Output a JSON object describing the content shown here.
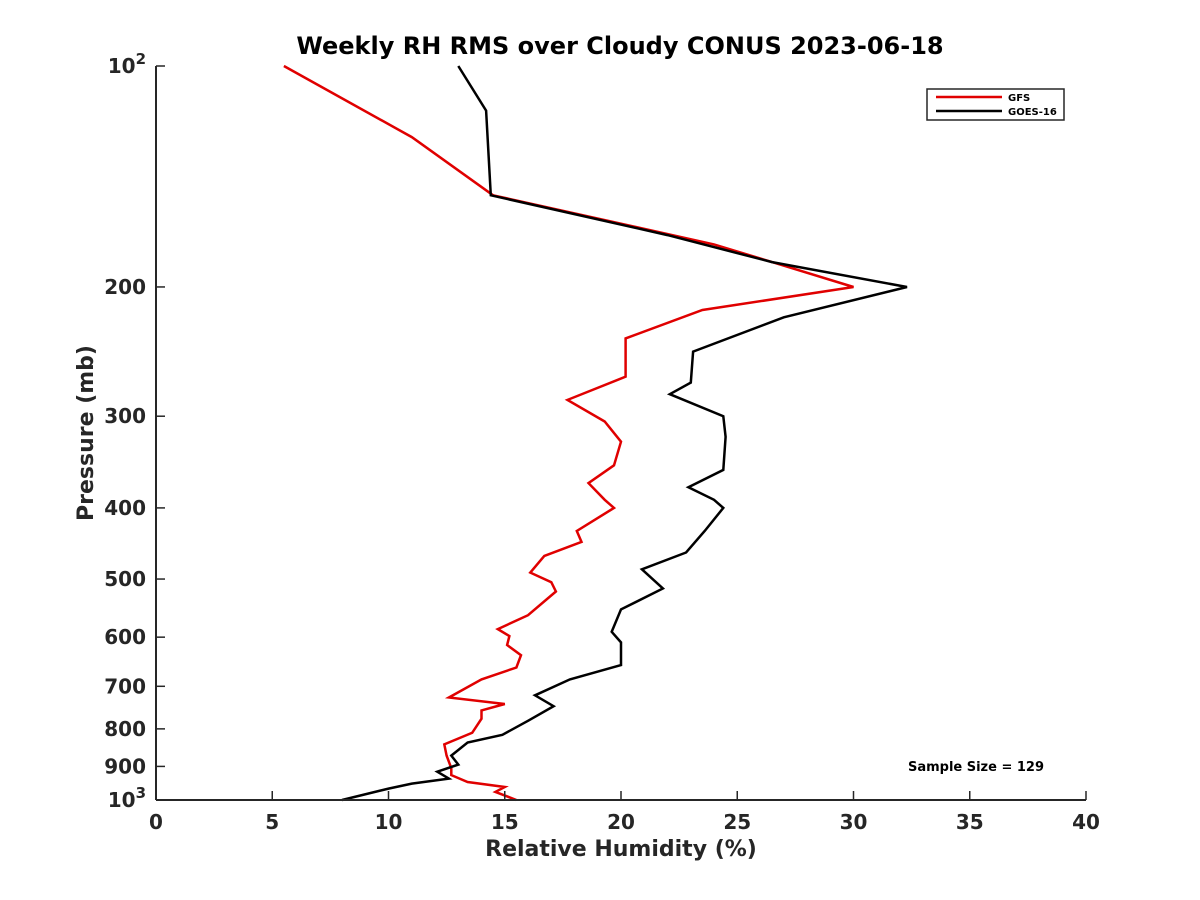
{
  "chart_data": {
    "type": "line",
    "title": "Weekly RH RMS over Cloudy CONUS 2023-06-18",
    "xlabel": "Relative Humidity (%)",
    "ylabel": "Pressure (mb)",
    "xlim": [
      0,
      40
    ],
    "ylim": [
      100,
      1000
    ],
    "yscale": "log",
    "y_reversed": true,
    "xticks": [
      0,
      5,
      10,
      15,
      20,
      25,
      30,
      35,
      40
    ],
    "yticks": [
      {
        "value": 100,
        "label": "10",
        "sup": "2"
      },
      {
        "value": 200,
        "label": "200",
        "sup": ""
      },
      {
        "value": 300,
        "label": "300",
        "sup": ""
      },
      {
        "value": 400,
        "label": "400",
        "sup": ""
      },
      {
        "value": 500,
        "label": "500",
        "sup": ""
      },
      {
        "value": 600,
        "label": "600",
        "sup": ""
      },
      {
        "value": 700,
        "label": "700",
        "sup": ""
      },
      {
        "value": 800,
        "label": "800",
        "sup": ""
      },
      {
        "value": 900,
        "label": "900",
        "sup": ""
      },
      {
        "value": 1000,
        "label": "10",
        "sup": "3"
      }
    ],
    "grid": false,
    "legend_position": "top-right",
    "annotation": "Sample Size = 129",
    "series": [
      {
        "name": "GFS",
        "color": "#e00000",
        "points": [
          [
            5.5,
            100
          ],
          [
            11.0,
            125
          ],
          [
            14.5,
            150
          ],
          [
            24.0,
            175
          ],
          [
            26.5,
            185
          ],
          [
            30.0,
            200
          ],
          [
            23.5,
            215
          ],
          [
            20.2,
            235
          ],
          [
            20.2,
            265
          ],
          [
            17.7,
            285
          ],
          [
            19.3,
            305
          ],
          [
            20.0,
            325
          ],
          [
            19.7,
            350
          ],
          [
            18.6,
            370
          ],
          [
            19.3,
            390
          ],
          [
            19.7,
            400
          ],
          [
            18.1,
            430
          ],
          [
            18.3,
            445
          ],
          [
            16.7,
            465
          ],
          [
            16.1,
            490
          ],
          [
            17.0,
            505
          ],
          [
            17.2,
            520
          ],
          [
            16.0,
            560
          ],
          [
            14.7,
            585
          ],
          [
            15.2,
            598
          ],
          [
            15.1,
            615
          ],
          [
            15.7,
            635
          ],
          [
            15.5,
            660
          ],
          [
            14.0,
            685
          ],
          [
            12.6,
            725
          ],
          [
            15.0,
            740
          ],
          [
            14.0,
            755
          ],
          [
            14.0,
            775
          ],
          [
            13.6,
            810
          ],
          [
            12.4,
            840
          ],
          [
            12.5,
            870
          ],
          [
            12.7,
            905
          ],
          [
            12.7,
            925
          ],
          [
            13.4,
            945
          ],
          [
            15.0,
            960
          ],
          [
            14.6,
            975
          ],
          [
            15.5,
            1000
          ]
        ]
      },
      {
        "name": "GOES-16",
        "color": "#000000",
        "points": [
          [
            13.0,
            100
          ],
          [
            14.2,
            115
          ],
          [
            14.4,
            150
          ],
          [
            22.0,
            170
          ],
          [
            26.5,
            185
          ],
          [
            32.3,
            200
          ],
          [
            27.0,
            220
          ],
          [
            23.1,
            245
          ],
          [
            23.0,
            270
          ],
          [
            22.1,
            280
          ],
          [
            24.4,
            300
          ],
          [
            24.5,
            320
          ],
          [
            24.4,
            355
          ],
          [
            22.9,
            375
          ],
          [
            24.0,
            390
          ],
          [
            24.4,
            400
          ],
          [
            23.6,
            430
          ],
          [
            22.8,
            460
          ],
          [
            20.9,
            485
          ],
          [
            21.8,
            515
          ],
          [
            20.0,
            550
          ],
          [
            19.6,
            590
          ],
          [
            20.0,
            610
          ],
          [
            20.0,
            655
          ],
          [
            17.8,
            685
          ],
          [
            16.3,
            720
          ],
          [
            17.1,
            745
          ],
          [
            16.0,
            780
          ],
          [
            14.9,
            815
          ],
          [
            13.4,
            835
          ],
          [
            12.7,
            870
          ],
          [
            13.0,
            895
          ],
          [
            12.1,
            915
          ],
          [
            12.6,
            935
          ],
          [
            11.0,
            950
          ],
          [
            10.0,
            965
          ],
          [
            8.0,
            1000
          ]
        ]
      }
    ]
  }
}
